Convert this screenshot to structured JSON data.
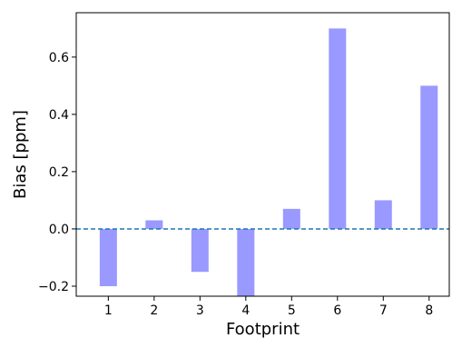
{
  "chart_data": {
    "type": "bar",
    "title": "",
    "xlabel": "Footprint",
    "ylabel": "Bias [ppm]",
    "categories": [
      "1",
      "2",
      "3",
      "4",
      "5",
      "6",
      "7",
      "8"
    ],
    "values": [
      -0.2,
      0.03,
      -0.15,
      -0.24,
      0.07,
      0.7,
      0.1,
      0.5
    ],
    "ylim": [
      -0.235,
      0.755
    ],
    "yticks": [
      -0.2,
      0.0,
      0.2,
      0.4,
      0.6
    ],
    "ytick_labels": [
      "−0.2",
      "0.0",
      "0.2",
      "0.4",
      "0.6"
    ],
    "bar_color": "#9999ff",
    "reference_line": {
      "y": 0.0,
      "style": "dashed",
      "color": "#1f77b4"
    },
    "grid": false,
    "legend": "none"
  }
}
